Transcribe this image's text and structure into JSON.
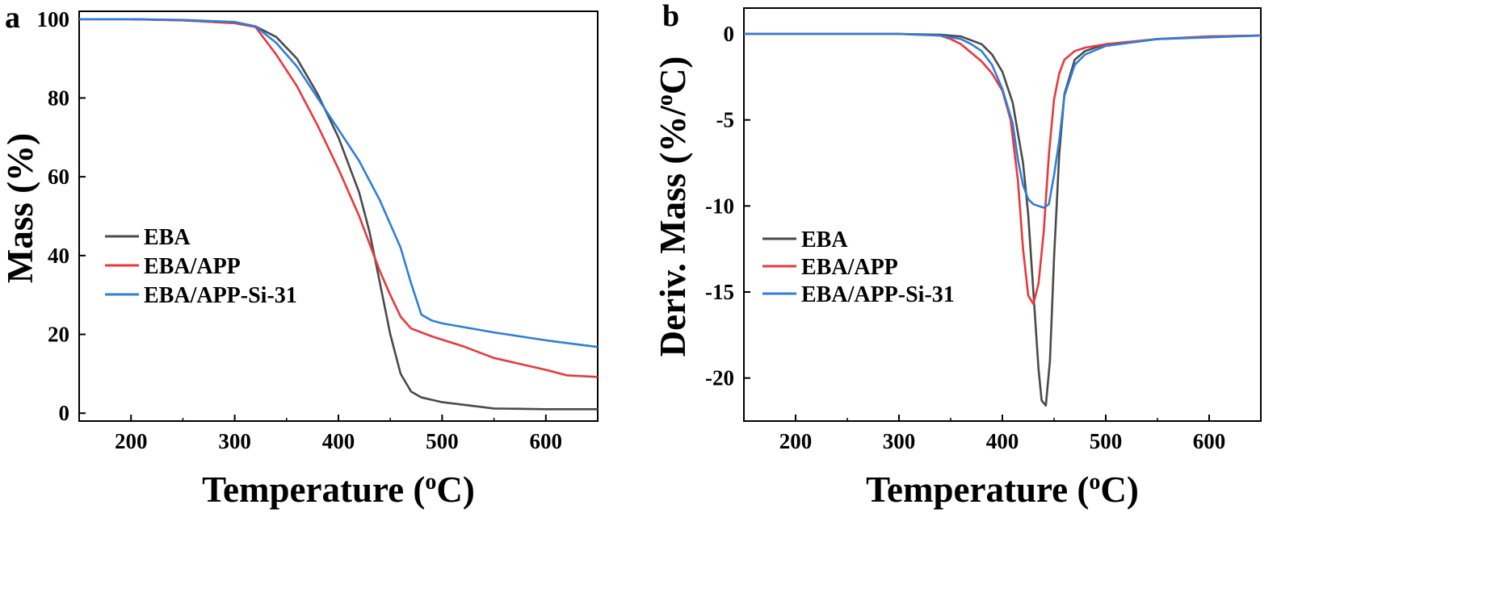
{
  "chart_data": [
    {
      "panel_label": "a",
      "type": "line",
      "title": "",
      "xlabel": "Temperature (",
      "xlabel_sup": "o",
      "xlabel_end": "C)",
      "ylabel": "Mass (%)",
      "xlim": [
        150,
        650
      ],
      "ylim": [
        -2,
        102
      ],
      "xticks": [
        200,
        300,
        400,
        500,
        600
      ],
      "yticks": [
        0,
        20,
        40,
        60,
        80,
        100
      ],
      "legend_position": "left-middle",
      "series": [
        {
          "name": "EBA",
          "color": "#4a4a4a",
          "points": [
            [
              150,
              100
            ],
            [
              200,
              100
            ],
            [
              250,
              99.7
            ],
            [
              300,
              99
            ],
            [
              320,
              98.2
            ],
            [
              340,
              95.5
            ],
            [
              360,
              90
            ],
            [
              380,
              81
            ],
            [
              400,
              70
            ],
            [
              420,
              56
            ],
            [
              430,
              46
            ],
            [
              440,
              33
            ],
            [
              450,
              20
            ],
            [
              460,
              10
            ],
            [
              470,
              5.5
            ],
            [
              480,
              4
            ],
            [
              500,
              2.8
            ],
            [
              550,
              1.2
            ],
            [
              600,
              1
            ],
            [
              650,
              1
            ]
          ]
        },
        {
          "name": "EBA/APP",
          "color": "#e8383d",
          "points": [
            [
              150,
              100
            ],
            [
              200,
              100
            ],
            [
              250,
              99.7
            ],
            [
              300,
              99
            ],
            [
              320,
              98
            ],
            [
              340,
              91
            ],
            [
              360,
              83
            ],
            [
              380,
              73
            ],
            [
              400,
              62
            ],
            [
              420,
              50
            ],
            [
              440,
              36
            ],
            [
              450,
              30
            ],
            [
              460,
              24.5
            ],
            [
              470,
              21.5
            ],
            [
              490,
              19.5
            ],
            [
              520,
              17
            ],
            [
              550,
              14
            ],
            [
              600,
              11
            ],
            [
              620,
              9.6
            ],
            [
              650,
              9.2
            ]
          ]
        },
        {
          "name": "EBA/APP-Si-31",
          "color": "#2f7ed8",
          "points": [
            [
              150,
              100
            ],
            [
              200,
              100
            ],
            [
              250,
              99.8
            ],
            [
              300,
              99.3
            ],
            [
              320,
              98.2
            ],
            [
              340,
              94
            ],
            [
              360,
              88
            ],
            [
              380,
              80
            ],
            [
              400,
              72
            ],
            [
              420,
              64
            ],
            [
              440,
              54
            ],
            [
              460,
              42
            ],
            [
              470,
              33
            ],
            [
              480,
              25
            ],
            [
              490,
              23.5
            ],
            [
              500,
              22.8
            ],
            [
              550,
              20.5
            ],
            [
              600,
              18.5
            ],
            [
              650,
              16.8
            ]
          ]
        }
      ]
    },
    {
      "panel_label": "b",
      "type": "line",
      "title": "",
      "xlabel": "Temperature (",
      "xlabel_sup": "o",
      "xlabel_end": "C)",
      "ylabel": "Deriv. Mass (%/",
      "ylabel_sup": "o",
      "ylabel_end": "C)",
      "xlim": [
        150,
        650
      ],
      "ylim": [
        -22.5,
        1.5
      ],
      "xticks": [
        200,
        300,
        400,
        500,
        600
      ],
      "yticks": [
        0,
        -5,
        -10,
        -15,
        -20
      ],
      "legend_position": "left-lower",
      "series": [
        {
          "name": "EBA",
          "color": "#4a4a4a",
          "points": [
            [
              150,
              0
            ],
            [
              200,
              0
            ],
            [
              250,
              0
            ],
            [
              300,
              0
            ],
            [
              340,
              -0.05
            ],
            [
              360,
              -0.15
            ],
            [
              380,
              -0.6
            ],
            [
              390,
              -1.2
            ],
            [
              400,
              -2.2
            ],
            [
              410,
              -4
            ],
            [
              420,
              -7.5
            ],
            [
              425,
              -10.5
            ],
            [
              430,
              -15
            ],
            [
              435,
              -19.5
            ],
            [
              438,
              -21.3
            ],
            [
              442,
              -21.6
            ],
            [
              446,
              -19
            ],
            [
              450,
              -13
            ],
            [
              455,
              -7
            ],
            [
              460,
              -3.5
            ],
            [
              470,
              -1.5
            ],
            [
              480,
              -1
            ],
            [
              500,
              -0.6
            ],
            [
              550,
              -0.3
            ],
            [
              600,
              -0.15
            ],
            [
              650,
              -0.1
            ]
          ]
        },
        {
          "name": "EBA/APP",
          "color": "#e8383d",
          "points": [
            [
              150,
              0
            ],
            [
              200,
              0
            ],
            [
              250,
              0
            ],
            [
              300,
              0
            ],
            [
              340,
              -0.1
            ],
            [
              350,
              -0.3
            ],
            [
              360,
              -0.6
            ],
            [
              370,
              -1.1
            ],
            [
              380,
              -1.6
            ],
            [
              390,
              -2.3
            ],
            [
              400,
              -3.3
            ],
            [
              408,
              -5
            ],
            [
              415,
              -8.5
            ],
            [
              420,
              -12.5
            ],
            [
              425,
              -15.2
            ],
            [
              430,
              -15.7
            ],
            [
              435,
              -14.5
            ],
            [
              440,
              -11.5
            ],
            [
              445,
              -7
            ],
            [
              450,
              -3.8
            ],
            [
              455,
              -2.3
            ],
            [
              460,
              -1.5
            ],
            [
              470,
              -1
            ],
            [
              480,
              -0.8
            ],
            [
              500,
              -0.6
            ],
            [
              550,
              -0.3
            ],
            [
              600,
              -0.15
            ],
            [
              650,
              -0.1
            ]
          ]
        },
        {
          "name": "EBA/APP-Si-31",
          "color": "#2f7ed8",
          "points": [
            [
              150,
              0
            ],
            [
              200,
              0
            ],
            [
              250,
              0
            ],
            [
              300,
              0
            ],
            [
              340,
              -0.1
            ],
            [
              360,
              -0.3
            ],
            [
              370,
              -0.6
            ],
            [
              380,
              -1
            ],
            [
              390,
              -1.8
            ],
            [
              400,
              -3.2
            ],
            [
              410,
              -5.2
            ],
            [
              415,
              -7.3
            ],
            [
              420,
              -8.8
            ],
            [
              425,
              -9.6
            ],
            [
              430,
              -9.9
            ],
            [
              440,
              -10.1
            ],
            [
              445,
              -9.9
            ],
            [
              450,
              -8.2
            ],
            [
              455,
              -6.2
            ],
            [
              460,
              -3.6
            ],
            [
              470,
              -1.8
            ],
            [
              480,
              -1.2
            ],
            [
              500,
              -0.7
            ],
            [
              550,
              -0.3
            ],
            [
              600,
              -0.2
            ],
            [
              650,
              -0.1
            ]
          ]
        }
      ]
    }
  ]
}
